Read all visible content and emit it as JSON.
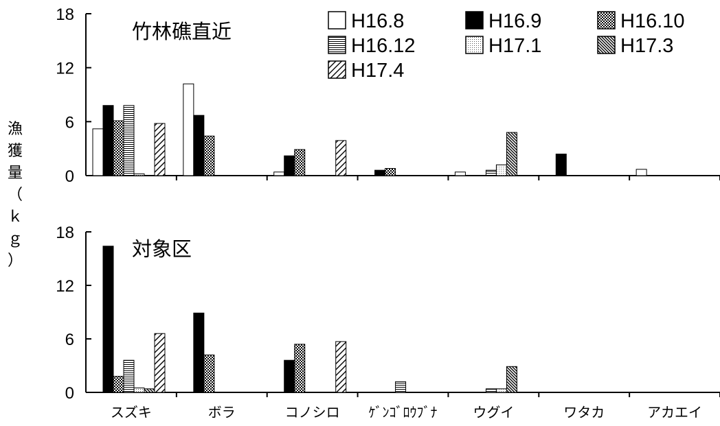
{
  "chart_data": {
    "type": "bar",
    "ylabel": "漁獲量（ｋｇ）",
    "categories": [
      "スズキ",
      "ボラ",
      "コノシロ",
      "ｹﾞﾝｺﾞﾛｳﾌﾞﾅ",
      "ウグイ",
      "ワタカ",
      "アカエイ"
    ],
    "series_names": [
      "H16.8",
      "H16.9",
      "H16.10",
      "H16.12",
      "H17.1",
      "H17.3",
      "H17.4"
    ],
    "ylim": [
      0,
      18
    ],
    "yticks": [
      "0",
      "6",
      "12",
      "18"
    ],
    "legend_placement": "top-right",
    "grid": false,
    "panels": [
      {
        "title": "竹林礁直近",
        "series": [
          {
            "name": "H16.8",
            "values": [
              5.2,
              10.2,
              0.4,
              0,
              0.4,
              0,
              0.7
            ]
          },
          {
            "name": "H16.9",
            "values": [
              7.8,
              6.7,
              2.2,
              0.6,
              0,
              2.4,
              0
            ]
          },
          {
            "name": "H16.10",
            "values": [
              6.1,
              4.4,
              2.9,
              0.8,
              0,
              0,
              0
            ]
          },
          {
            "name": "H16.12",
            "values": [
              7.8,
              0,
              0,
              0,
              0.6,
              0,
              0
            ]
          },
          {
            "name": "H17.1",
            "values": [
              0.2,
              0,
              0,
              0,
              1.2,
              0,
              0
            ]
          },
          {
            "name": "H17.3",
            "values": [
              0,
              0,
              0,
              0,
              4.8,
              0,
              0
            ]
          },
          {
            "name": "H17.4",
            "values": [
              5.8,
              0,
              3.9,
              0,
              0,
              0,
              0
            ]
          }
        ]
      },
      {
        "title": "対象区",
        "series": [
          {
            "name": "H16.8",
            "values": [
              0,
              0,
              0,
              0,
              0,
              0,
              0
            ]
          },
          {
            "name": "H16.9",
            "values": [
              16.4,
              8.9,
              3.6,
              0,
              0,
              0,
              0
            ]
          },
          {
            "name": "H16.10",
            "values": [
              1.8,
              4.2,
              5.4,
              0,
              0,
              0,
              0
            ]
          },
          {
            "name": "H16.12",
            "values": [
              3.6,
              0,
              0,
              1.2,
              0.4,
              0,
              0
            ]
          },
          {
            "name": "H17.1",
            "values": [
              0.5,
              0,
              0,
              0,
              0.4,
              0,
              0
            ]
          },
          {
            "name": "H17.3",
            "values": [
              0.4,
              0,
              0,
              0,
              2.9,
              0,
              0
            ]
          },
          {
            "name": "H17.4",
            "values": [
              6.6,
              0,
              5.7,
              0,
              0,
              0,
              0
            ]
          }
        ]
      }
    ]
  }
}
